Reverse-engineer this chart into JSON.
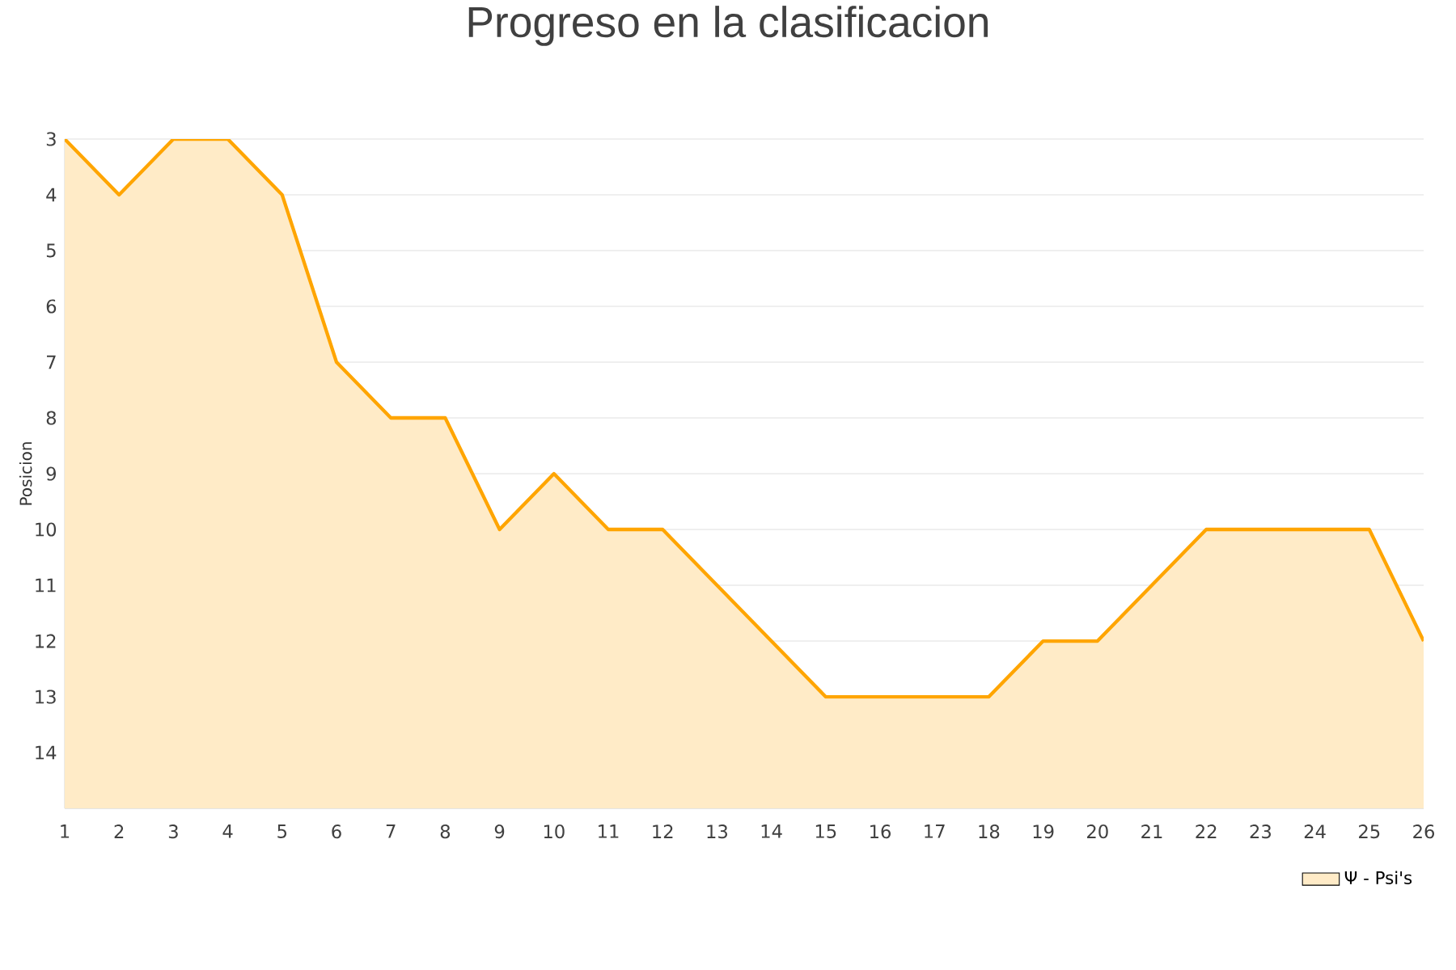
{
  "chart_data": {
    "type": "area",
    "title": "Progreso en la clasificacion",
    "ylabel": "Posicion",
    "x": [
      1,
      2,
      3,
      4,
      5,
      6,
      7,
      8,
      9,
      10,
      11,
      12,
      13,
      14,
      15,
      16,
      17,
      18,
      19,
      20,
      21,
      22,
      23,
      24,
      25,
      26
    ],
    "series": [
      {
        "name": "Ψ - Psi's",
        "color": "#ffa500",
        "values": [
          3,
          4,
          3,
          3,
          4,
          7,
          8,
          8,
          10,
          9,
          10,
          10,
          11,
          12,
          13,
          13,
          13,
          13,
          12,
          12,
          11,
          10,
          10,
          10,
          10,
          12
        ]
      }
    ],
    "xlim": [
      1,
      26
    ],
    "xticks": [
      1,
      2,
      3,
      4,
      5,
      6,
      7,
      8,
      9,
      10,
      11,
      12,
      13,
      14,
      15,
      16,
      17,
      18,
      19,
      20,
      21,
      22,
      23,
      24,
      25,
      26
    ],
    "ylim": [
      15,
      3
    ],
    "yticks": [
      3,
      4,
      5,
      6,
      7,
      8,
      9,
      10,
      11,
      12,
      13,
      14,
      {
        "value": 15,
        "label": null
      }
    ],
    "grid": "y",
    "legend": "bottom right",
    "marker": "none"
  }
}
